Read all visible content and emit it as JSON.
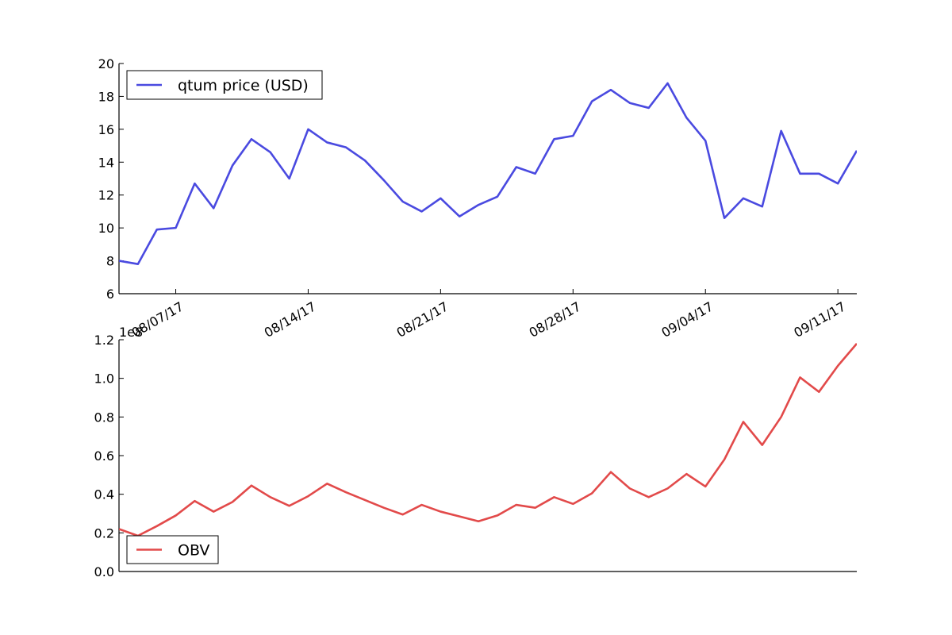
{
  "chart_data": [
    {
      "type": "line",
      "title": "",
      "xlabel": "",
      "ylabel": "",
      "ylim": [
        6,
        20
      ],
      "yticks": [
        "6",
        "8",
        "10",
        "12",
        "14",
        "16",
        "18",
        "20"
      ],
      "xlim": [
        "2017-08-04",
        "2017-09-12"
      ],
      "xticks": [
        {
          "date": "2017-08-07",
          "label": "08/07/17"
        },
        {
          "date": "2017-08-14",
          "label": "08/14/17"
        },
        {
          "date": "2017-08-21",
          "label": "08/21/17"
        },
        {
          "date": "2017-08-28",
          "label": "08/28/17"
        },
        {
          "date": "2017-09-04",
          "label": "09/04/17"
        },
        {
          "date": "2017-09-11",
          "label": "09/11/17"
        }
      ],
      "legend": {
        "placement": "top-left"
      },
      "series": [
        {
          "name": "qtum price (USD)",
          "color": "#4a4ae0",
          "x": [
            "2017-08-04",
            "2017-08-05",
            "2017-08-06",
            "2017-08-07",
            "2017-08-08",
            "2017-08-09",
            "2017-08-10",
            "2017-08-11",
            "2017-08-12",
            "2017-08-13",
            "2017-08-14",
            "2017-08-15",
            "2017-08-16",
            "2017-08-17",
            "2017-08-18",
            "2017-08-19",
            "2017-08-20",
            "2017-08-21",
            "2017-08-22",
            "2017-08-23",
            "2017-08-24",
            "2017-08-25",
            "2017-08-26",
            "2017-08-27",
            "2017-08-28",
            "2017-08-29",
            "2017-08-30",
            "2017-08-31",
            "2017-09-01",
            "2017-09-02",
            "2017-09-03",
            "2017-09-04",
            "2017-09-05",
            "2017-09-06",
            "2017-09-07",
            "2017-09-08",
            "2017-09-09",
            "2017-09-10",
            "2017-09-11",
            "2017-09-12"
          ],
          "values": [
            8.0,
            7.8,
            9.9,
            10.0,
            12.7,
            11.2,
            13.8,
            15.4,
            14.6,
            13.0,
            16.0,
            15.2,
            14.9,
            14.1,
            12.9,
            11.6,
            11.0,
            11.8,
            10.7,
            11.4,
            11.9,
            13.7,
            13.3,
            15.4,
            15.6,
            17.7,
            18.4,
            17.6,
            17.3,
            18.8,
            16.7,
            15.3,
            10.6,
            11.8,
            11.3,
            15.9,
            13.3,
            13.3,
            12.7,
            14.7
          ]
        }
      ]
    },
    {
      "type": "line",
      "title": "",
      "xlabel": "",
      "ylabel": "",
      "ylim": [
        0,
        1.2
      ],
      "yticks": [
        "0.0",
        "0.2",
        "0.4",
        "0.6",
        "0.8",
        "1.0",
        "1.2"
      ],
      "offset_text": "1e8",
      "xlim": [
        "2017-08-04",
        "2017-09-12"
      ],
      "legend": {
        "placement": "bottom-left"
      },
      "series": [
        {
          "name": "OBV",
          "color": "#e24a4a",
          "x": [
            "2017-08-04",
            "2017-08-05",
            "2017-08-06",
            "2017-08-07",
            "2017-08-08",
            "2017-08-09",
            "2017-08-10",
            "2017-08-11",
            "2017-08-12",
            "2017-08-13",
            "2017-08-14",
            "2017-08-15",
            "2017-08-16",
            "2017-08-17",
            "2017-08-18",
            "2017-08-19",
            "2017-08-20",
            "2017-08-21",
            "2017-08-22",
            "2017-08-23",
            "2017-08-24",
            "2017-08-25",
            "2017-08-26",
            "2017-08-27",
            "2017-08-28",
            "2017-08-29",
            "2017-08-30",
            "2017-08-31",
            "2017-09-01",
            "2017-09-02",
            "2017-09-03",
            "2017-09-04",
            "2017-09-05",
            "2017-09-06",
            "2017-09-07",
            "2017-09-08",
            "2017-09-09",
            "2017-09-10",
            "2017-09-11",
            "2017-09-12"
          ],
          "values": [
            0.22,
            0.185,
            0.235,
            0.29,
            0.365,
            0.31,
            0.36,
            0.445,
            0.385,
            0.34,
            0.39,
            0.455,
            0.41,
            0.37,
            0.33,
            0.295,
            0.345,
            0.31,
            0.285,
            0.26,
            0.29,
            0.345,
            0.33,
            0.385,
            0.35,
            0.405,
            0.515,
            0.43,
            0.385,
            0.43,
            0.505,
            0.44,
            0.58,
            0.775,
            0.655,
            0.8,
            1.005,
            0.93,
            1.065,
            1.18
          ]
        }
      ]
    }
  ]
}
